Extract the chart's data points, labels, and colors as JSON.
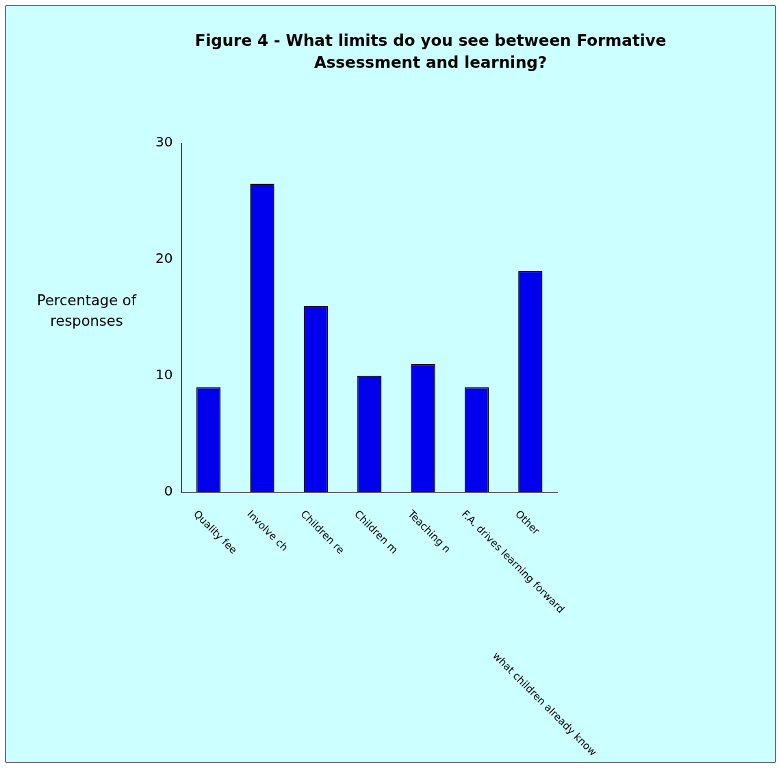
{
  "chart_data": {
    "type": "bar",
    "title": "Figure 4 - What limits do you see between Formative Assessment and learning?",
    "ylabel": "Percentage of responses",
    "categories": [
      "Quality fee",
      "Involve ch",
      "Children re",
      "Children m",
      "Teaching n",
      "F.A. drives learning forward",
      "Other"
    ],
    "values": [
      9,
      26.5,
      16,
      10,
      11,
      9,
      19
    ],
    "color": "#0000ee",
    "ylim": [
      0,
      30
    ],
    "yticks": [
      0,
      10,
      20,
      30
    ],
    "grid": false,
    "legend": false,
    "annotations": [
      "what children already know"
    ]
  }
}
